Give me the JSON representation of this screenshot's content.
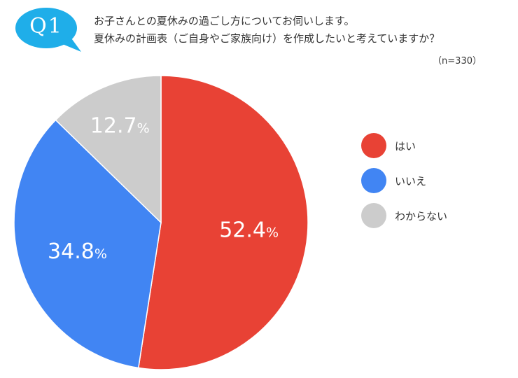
{
  "header": {
    "badge": "Q1",
    "question_line1": "お子さんとの夏休みの過ごし方についてお伺いします。",
    "question_line2": "夏休みの計画表（ご自身やご家族向け）を作成したいと考えていますか？",
    "sample_size": "（n=330）"
  },
  "colors": {
    "badge": "#1faee9",
    "yes": "#e84235",
    "no": "#4185f3",
    "unknown": "#cccccc"
  },
  "chart_data": {
    "type": "pie",
    "start": "12 o'clock, clockwise",
    "slices": [
      {
        "label": "はい",
        "value": 52.4,
        "display": "52.4%",
        "color": "#e84235"
      },
      {
        "label": "いいえ",
        "value": 34.8,
        "display": "34.8%",
        "color": "#4185f3"
      },
      {
        "label": "わからない",
        "value": 12.7,
        "display": "12.7%",
        "color": "#cccccc"
      }
    ],
    "legend_position": "right"
  }
}
